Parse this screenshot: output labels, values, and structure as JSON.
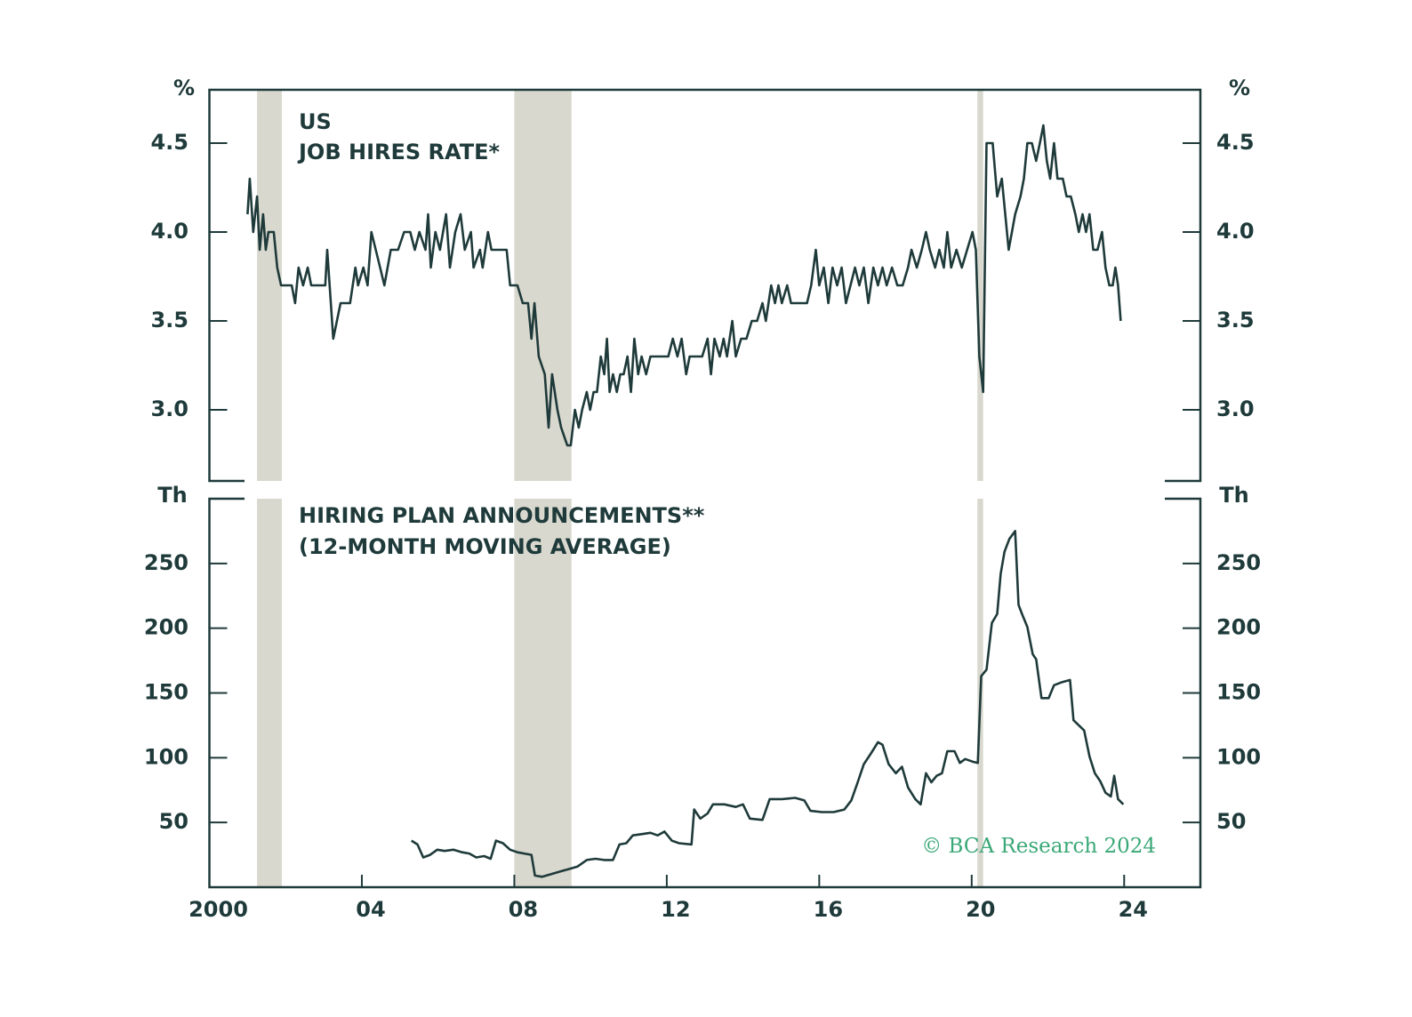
{
  "chart_data": [
    {
      "type": "line",
      "title": "US",
      "subtitle": "JOB HIRES RATE*",
      "y_unit": "%",
      "xlim": [
        2000,
        2026
      ],
      "ylim": [
        2.6,
        4.8
      ],
      "yticks": [
        {
          "value": 3,
          "label": "3.0"
        },
        3.5,
        {
          "value": 4,
          "label": "4.0"
        },
        4.5
      ],
      "shading": [
        [
          2001.25,
          2001.9
        ],
        [
          2008.0,
          2009.5
        ],
        [
          2020.15,
          2020.3
        ]
      ],
      "shading_color": "#d8d8cf",
      "series": [
        {
          "color": "#1f3a3a",
          "x": [
            2001.0,
            2001.06,
            2001.15,
            2001.25,
            2001.32,
            2001.41,
            2001.48,
            2001.55,
            2001.69,
            2001.78,
            2001.88,
            2002.16,
            2002.25,
            2002.34,
            2002.46,
            2002.58,
            2002.67,
            2003.04,
            2003.09,
            2003.25,
            2003.44,
            2003.69,
            2003.83,
            2003.9,
            2004.04,
            2004.15,
            2004.25,
            2004.48,
            2004.59,
            2004.76,
            2004.95,
            2005.11,
            2005.27,
            2005.39,
            2005.51,
            2005.67,
            2005.74,
            2005.81,
            2005.93,
            2006.05,
            2006.21,
            2006.31,
            2006.45,
            2006.59,
            2006.7,
            2006.86,
            2006.93,
            2007.1,
            2007.17,
            2007.31,
            2007.4,
            2007.54,
            2007.66,
            2007.8,
            2007.89,
            2008.08,
            2008.22,
            2008.36,
            2008.45,
            2008.53,
            2008.64,
            2008.8,
            2008.9,
            2008.99,
            2009.13,
            2009.23,
            2009.39,
            2009.48,
            2009.59,
            2009.69,
            2009.78,
            2009.9,
            2009.99,
            2010.08,
            2010.17,
            2010.27,
            2010.36,
            2010.43,
            2010.5,
            2010.59,
            2010.69,
            2010.78,
            2010.87,
            2010.97,
            2011.06,
            2011.15,
            2011.25,
            2011.34,
            2011.46,
            2011.57,
            2011.69,
            2011.88,
            2012.04,
            2012.16,
            2012.28,
            2012.39,
            2012.51,
            2012.6,
            2012.74,
            2012.93,
            2013.07,
            2013.16,
            2013.25,
            2013.39,
            2013.49,
            2013.58,
            2013.72,
            2013.81,
            2013.95,
            2014.09,
            2014.23,
            2014.37,
            2014.51,
            2014.6,
            2014.74,
            2014.84,
            2014.93,
            2015.02,
            2015.16,
            2015.26,
            2015.4,
            2015.54,
            2015.68,
            2015.79,
            2015.91,
            2016.0,
            2016.12,
            2016.24,
            2016.35,
            2016.47,
            2016.59,
            2016.7,
            2016.82,
            2016.94,
            2017.05,
            2017.17,
            2017.29,
            2017.42,
            2017.54,
            2017.66,
            2017.77,
            2017.91,
            2018.05,
            2018.19,
            2018.33,
            2018.42,
            2018.56,
            2018.69,
            2018.8,
            2018.9,
            2019.04,
            2019.15,
            2019.27,
            2019.36,
            2019.46,
            2019.6,
            2019.74,
            2019.88,
            2020.02,
            2020.11,
            2020.2,
            2020.3,
            2020.39,
            2020.55,
            2020.67,
            2020.79,
            2020.97,
            2021.14,
            2021.28,
            2021.37,
            2021.46,
            2021.58,
            2021.69,
            2021.79,
            2021.88,
            2021.97,
            2022.06,
            2022.16,
            2022.25,
            2022.39,
            2022.49,
            2022.6,
            2022.72,
            2022.81,
            2022.91,
            2023.0,
            2023.09,
            2023.19,
            2023.3,
            2023.42,
            2023.51,
            2023.61,
            2023.7,
            2023.77,
            2023.84,
            2023.91
          ],
          "values": [
            4.1,
            4.3,
            4.0,
            4.2,
            3.9,
            4.1,
            3.9,
            4.0,
            4.0,
            3.8,
            3.7,
            3.7,
            3.6,
            3.8,
            3.7,
            3.8,
            3.7,
            3.7,
            3.9,
            3.4,
            3.6,
            3.6,
            3.8,
            3.7,
            3.8,
            3.7,
            4.0,
            3.8,
            3.7,
            3.9,
            3.9,
            4.0,
            4.0,
            3.9,
            4.0,
            3.9,
            4.1,
            3.8,
            4.0,
            3.9,
            4.1,
            3.8,
            4.0,
            4.1,
            3.9,
            4.0,
            3.8,
            3.9,
            3.8,
            4.0,
            3.9,
            3.9,
            3.9,
            3.9,
            3.7,
            3.7,
            3.6,
            3.6,
            3.4,
            3.6,
            3.3,
            3.2,
            2.9,
            3.2,
            3.0,
            2.9,
            2.8,
            2.8,
            3.0,
            2.9,
            3.0,
            3.1,
            3.0,
            3.1,
            3.1,
            3.3,
            3.2,
            3.4,
            3.1,
            3.2,
            3.1,
            3.2,
            3.2,
            3.3,
            3.1,
            3.4,
            3.2,
            3.3,
            3.2,
            3.3,
            3.3,
            3.3,
            3.3,
            3.4,
            3.3,
            3.4,
            3.2,
            3.3,
            3.3,
            3.3,
            3.4,
            3.2,
            3.4,
            3.3,
            3.4,
            3.3,
            3.5,
            3.3,
            3.4,
            3.4,
            3.5,
            3.5,
            3.6,
            3.5,
            3.7,
            3.6,
            3.7,
            3.6,
            3.7,
            3.6,
            3.6,
            3.6,
            3.6,
            3.7,
            3.9,
            3.7,
            3.8,
            3.6,
            3.8,
            3.7,
            3.8,
            3.6,
            3.7,
            3.8,
            3.7,
            3.8,
            3.6,
            3.8,
            3.7,
            3.8,
            3.7,
            3.8,
            3.7,
            3.7,
            3.8,
            3.9,
            3.8,
            3.9,
            4.0,
            3.9,
            3.8,
            3.9,
            3.8,
            4.0,
            3.8,
            3.9,
            3.8,
            3.9,
            4.0,
            3.9,
            3.3,
            3.1,
            4.5,
            4.5,
            4.2,
            4.3,
            3.9,
            4.1,
            4.2,
            4.3,
            4.5,
            4.5,
            4.4,
            4.5,
            4.6,
            4.4,
            4.3,
            4.5,
            4.3,
            4.3,
            4.2,
            4.2,
            4.1,
            4.0,
            4.1,
            4.0,
            4.1,
            3.9,
            3.9,
            4.0,
            3.8,
            3.7,
            3.7,
            3.8,
            3.7,
            3.5
          ]
        }
      ]
    },
    {
      "type": "line",
      "title": "HIRING PLAN ANNOUNCEMENTS**",
      "subtitle": "(12-MONTH MOVING AVERAGE)",
      "y_unit": "Th",
      "annotation": "© BCA Research 2024",
      "annotation_color": "#3aa877",
      "xlim": [
        2000,
        2026
      ],
      "ylim": [
        0,
        300
      ],
      "xticks": [
        2000,
        {
          "value": 2004,
          "label": "04"
        },
        {
          "value": 2008,
          "label": "08"
        },
        {
          "value": 2012,
          "label": "12"
        },
        {
          "value": 2016,
          "label": "16"
        },
        {
          "value": 2020,
          "label": "20"
        },
        {
          "value": 2024,
          "label": "24"
        }
      ],
      "yticks": [
        50,
        100,
        150,
        200,
        250
      ],
      "series": [
        {
          "color": "#1f3a3a",
          "x": [
            2005.3,
            2005.46,
            2005.61,
            2005.79,
            2005.98,
            2006.17,
            2006.4,
            2006.63,
            2006.82,
            2007.0,
            2007.21,
            2007.38,
            2007.52,
            2007.7,
            2007.89,
            2008.08,
            2008.26,
            2008.45,
            2008.54,
            2008.73,
            2008.96,
            2009.19,
            2009.43,
            2009.66,
            2009.9,
            2010.13,
            2010.36,
            2010.59,
            2010.76,
            2010.94,
            2011.11,
            2011.34,
            2011.57,
            2011.76,
            2011.94,
            2012.13,
            2012.32,
            2012.65,
            2012.72,
            2012.88,
            2013.07,
            2013.21,
            2013.51,
            2013.81,
            2014.0,
            2014.18,
            2014.51,
            2014.7,
            2015.02,
            2015.37,
            2015.61,
            2015.77,
            2016.07,
            2016.38,
            2016.66,
            2016.84,
            2017.01,
            2017.17,
            2017.35,
            2017.54,
            2017.66,
            2017.82,
            2018.01,
            2018.17,
            2018.33,
            2018.52,
            2018.66,
            2018.8,
            2018.94,
            2019.08,
            2019.22,
            2019.36,
            2019.55,
            2019.69,
            2019.83,
            2020.02,
            2020.16,
            2020.25,
            2020.39,
            2020.53,
            2020.67,
            2020.76,
            2020.86,
            2020.99,
            2021.14,
            2021.23,
            2021.32,
            2021.46,
            2021.6,
            2021.69,
            2021.83,
            2022.02,
            2022.16,
            2022.34,
            2022.58,
            2022.67,
            2022.81,
            2022.95,
            2023.09,
            2023.23,
            2023.37,
            2023.51,
            2023.65,
            2023.74,
            2023.84,
            2023.98
          ],
          "values": [
            36,
            33,
            23,
            25,
            29,
            28,
            29,
            27,
            26,
            23,
            24,
            22,
            36,
            34,
            29,
            27,
            26,
            25,
            9,
            8,
            10,
            12,
            14,
            16,
            21,
            22,
            21,
            21,
            33,
            34,
            40,
            41,
            42,
            40,
            43,
            36,
            34,
            33,
            60,
            53,
            57,
            64,
            64,
            62,
            64,
            53,
            52,
            68,
            68,
            69,
            67,
            59,
            58,
            58,
            60,
            67,
            81,
            95,
            103,
            112,
            110,
            95,
            88,
            93,
            77,
            68,
            64,
            88,
            81,
            86,
            88,
            105,
            105,
            96,
            99,
            97,
            96,
            163,
            168,
            204,
            211,
            242,
            259,
            269,
            275,
            218,
            211,
            201,
            180,
            176,
            146,
            146,
            156,
            158,
            160,
            129,
            125,
            121,
            101,
            88,
            82,
            73,
            70,
            86,
            68,
            64
          ]
        }
      ]
    }
  ]
}
